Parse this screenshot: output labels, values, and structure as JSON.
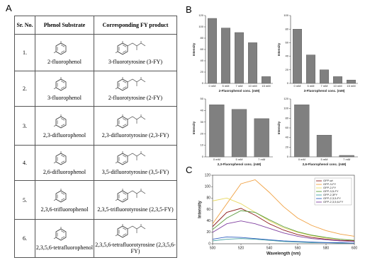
{
  "figure": {
    "panel_labels": [
      "A",
      "B",
      "C"
    ],
    "table": {
      "headers": [
        "Sr. No.",
        "Phenol Substrate",
        "Corresponding FY product"
      ],
      "rows": [
        [
          "1.",
          "2-fluorophenol",
          "3-fluorotyrosine (3-FY)"
        ],
        [
          "2.",
          "3-fluorophenol",
          "2-fluorotyrosine (2-FY)"
        ],
        [
          "3.",
          "2,3-difluorophenol",
          "2,3-difluorotyrosine (2,3-FY)"
        ],
        [
          "4.",
          "2,6-difluorophenol",
          "3,5-difluorotyrosine (3,5-FY)"
        ],
        [
          "5.",
          "2,3,6-trifluorophenol",
          "2,3,5-trifluorotyrosine (2,3,5-FY)"
        ],
        [
          "6.",
          "2,3,5,6-tetrafluorophenol",
          "2,3,5,6-tetrafluorotyrosine (2,3,5,6-FY)"
        ]
      ]
    }
  },
  "chart_data": [
    {
      "type": "bar",
      "xlabel": "2-Fluorophenol conc. (mM)",
      "ylabel": "Intensity",
      "color": "#808080",
      "categories": [
        "0 mM",
        "5 mM",
        "7 mM",
        "10 mM",
        "15 mM"
      ],
      "values": [
        115,
        98,
        90,
        72,
        12
      ],
      "ylim": [
        0,
        120
      ],
      "yticks": [
        0,
        20,
        40,
        60,
        80,
        100,
        120
      ]
    },
    {
      "type": "bar",
      "xlabel": "3-Fluorophenol conc. (mM)",
      "ylabel": "Intensity",
      "color": "#808080",
      "categories": [
        "0 mM",
        "5 mM",
        "7 mM",
        "10 mM",
        "15 mM"
      ],
      "values": [
        80,
        42,
        20,
        10,
        5
      ],
      "ylim": [
        0,
        100
      ],
      "yticks": [
        0,
        20,
        40,
        60,
        80,
        100
      ]
    },
    {
      "type": "bar",
      "xlabel": "2,3-Fluorophenol conc. (mM)",
      "ylabel": "Intensity",
      "color": "#808080",
      "categories": [
        "0 mM",
        "5 mM",
        "7 mM"
      ],
      "values": [
        45,
        41,
        33
      ],
      "ylim": [
        0,
        50
      ],
      "yticks": [
        0,
        10,
        20,
        30,
        40,
        50
      ]
    },
    {
      "type": "bar",
      "xlabel": "2,6-Fluorophenol conc. (mM)",
      "ylabel": "Intensity",
      "color": "#808080",
      "categories": [
        "0 mM",
        "5 mM",
        "7 mM"
      ],
      "values": [
        108,
        45,
        3
      ],
      "ylim": [
        0,
        120
      ],
      "yticks": [
        0,
        20,
        40,
        60,
        80,
        100,
        120
      ]
    },
    {
      "type": "line",
      "xlabel": "Wavelength (nm)",
      "ylabel": "Intensity",
      "legend": "upper right",
      "x": [
        500,
        510,
        520,
        530,
        540,
        550,
        560,
        570,
        580,
        590,
        600
      ],
      "series": [
        {
          "name": "GFP-wt",
          "color": "#8b1a1a",
          "values": [
            30,
            55,
            62,
            50,
            35,
            24,
            16,
            11,
            8,
            6,
            5
          ]
        },
        {
          "name": "GFP-3-FY",
          "color": "#f0a040",
          "values": [
            35,
            70,
            105,
            112,
            90,
            65,
            45,
            32,
            23,
            17,
            13
          ]
        },
        {
          "name": "GFP-2-FY",
          "color": "#e8d860",
          "values": [
            75,
            80,
            70,
            55,
            40,
            28,
            20,
            14,
            10,
            8,
            6
          ]
        },
        {
          "name": "GFP-3,5-FY",
          "color": "#5a9a3a",
          "values": [
            25,
            45,
            58,
            55,
            42,
            30,
            21,
            15,
            11,
            8,
            6
          ]
        },
        {
          "name": "GFP-2,3FY",
          "color": "#40a0a0",
          "values": [
            5,
            8,
            9,
            8,
            6,
            4,
            3,
            2,
            2,
            1,
            1
          ]
        },
        {
          "name": "GFP-2,3,5-FY",
          "color": "#3060c0",
          "values": [
            8,
            12,
            11,
            9,
            7,
            5,
            4,
            3,
            2,
            2,
            1
          ]
        },
        {
          "name": "GFP-2,3,5,6-FY",
          "color": "#8040a0",
          "values": [
            20,
            35,
            40,
            35,
            27,
            19,
            13,
            9,
            7,
            5,
            4
          ]
        }
      ],
      "xlim": [
        500,
        600
      ],
      "ylim": [
        0,
        120
      ],
      "xticks": [
        500,
        520,
        540,
        560,
        580,
        600
      ],
      "yticks": [
        0,
        20,
        40,
        60,
        80,
        100,
        120
      ]
    }
  ]
}
